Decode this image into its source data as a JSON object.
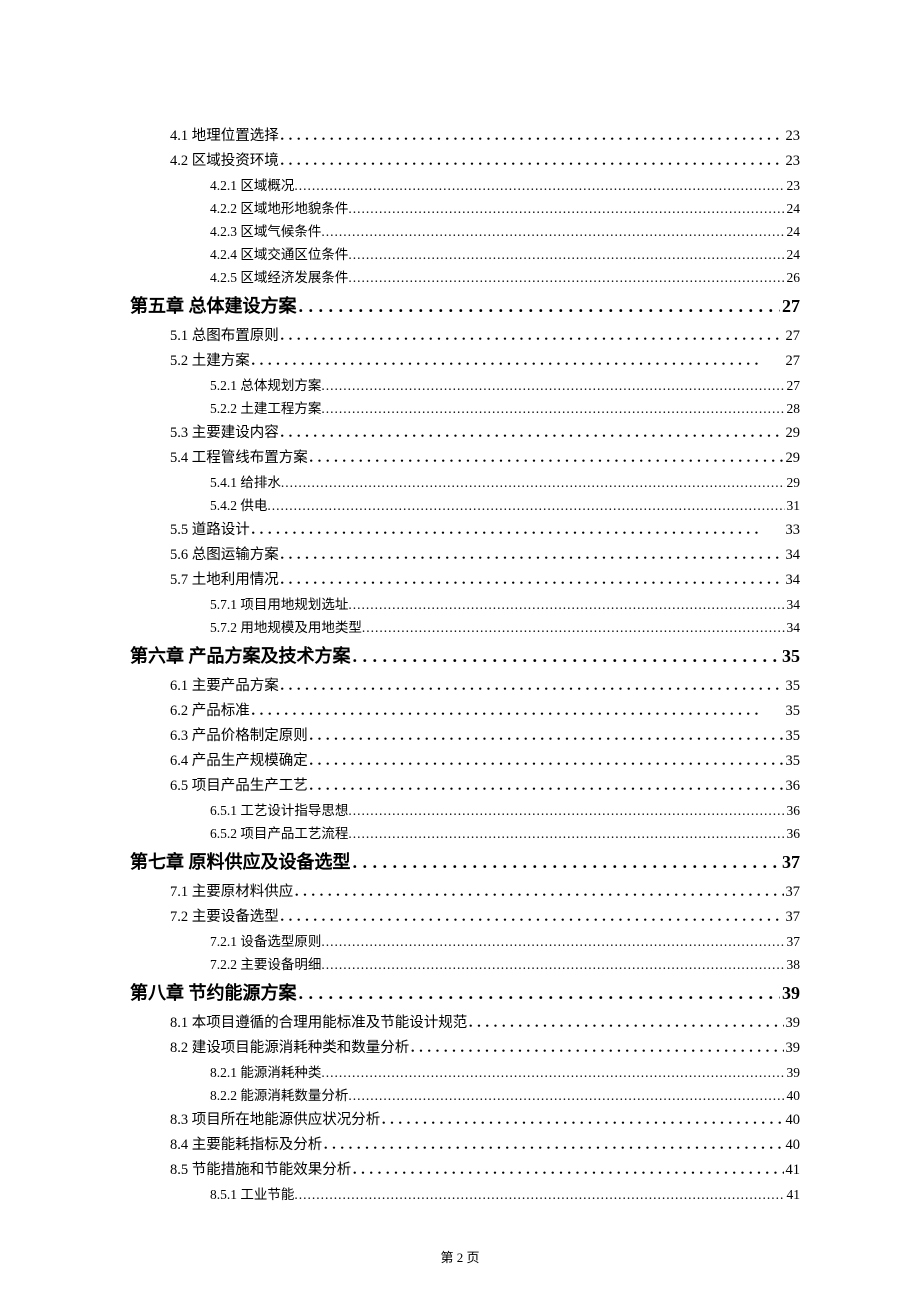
{
  "footer": "第 2 页",
  "dots_chapter_l1": "．．．．．．．．．．．．．．．．．．．．．．．．．．．．．．．．．．．．．．．．．．．．．．．．．．．．．．．．．．．．．．",
  "dots_l2": "..................................................................................................................................................................",
  "entries": [
    {
      "level": 1,
      "title": "4.1 地理位置选择",
      "page": "23"
    },
    {
      "level": 1,
      "title": "4.2 区域投资环境",
      "page": "23"
    },
    {
      "level": 2,
      "title": "4.2.1 区域概况",
      "page": "23"
    },
    {
      "level": 2,
      "title": "4.2.2 区域地形地貌条件",
      "page": "24"
    },
    {
      "level": 2,
      "title": "4.2.3 区域气候条件",
      "page": "24"
    },
    {
      "level": 2,
      "title": "4.2.4 区域交通区位条件",
      "page": "24"
    },
    {
      "level": 2,
      "title": "4.2.5 区域经济发展条件",
      "page": "26"
    },
    {
      "level": 0,
      "title": "第五章  总体建设方案",
      "page": "27"
    },
    {
      "level": 1,
      "title": "5.1 总图布置原则",
      "page": "27"
    },
    {
      "level": 1,
      "title": "5.2 土建方案",
      "page": "27"
    },
    {
      "level": 2,
      "title": "5.2.1 总体规划方案",
      "page": "27"
    },
    {
      "level": 2,
      "title": "5.2.2 土建工程方案",
      "page": "28"
    },
    {
      "level": 1,
      "title": "5.3 主要建设内容",
      "page": "29"
    },
    {
      "level": 1,
      "title": "5.4 工程管线布置方案",
      "page": "29"
    },
    {
      "level": 2,
      "title": "5.4.1 给排水",
      "page": "29"
    },
    {
      "level": 2,
      "title": "5.4.2 供电",
      "page": "31"
    },
    {
      "level": 1,
      "title": "5.5 道路设计",
      "page": "33"
    },
    {
      "level": 1,
      "title": "5.6 总图运输方案",
      "page": "34"
    },
    {
      "level": 1,
      "title": "5.7 土地利用情况",
      "page": "34"
    },
    {
      "level": 2,
      "title": "5.7.1 项目用地规划选址",
      "page": "34"
    },
    {
      "level": 2,
      "title": "5.7.2 用地规模及用地类型",
      "page": "34"
    },
    {
      "level": 0,
      "title": "第六章  产品方案及技术方案",
      "page": "35"
    },
    {
      "level": 1,
      "title": "6.1 主要产品方案",
      "page": "35"
    },
    {
      "level": 1,
      "title": "6.2 产品标准",
      "page": "35"
    },
    {
      "level": 1,
      "title": "6.3 产品价格制定原则",
      "page": "35"
    },
    {
      "level": 1,
      "title": "6.4 产品生产规模确定",
      "page": "35"
    },
    {
      "level": 1,
      "title": "6.5 项目产品生产工艺",
      "page": "36"
    },
    {
      "level": 2,
      "title": "6.5.1 工艺设计指导思想",
      "page": "36"
    },
    {
      "level": 2,
      "title": "6.5.2 项目产品工艺流程",
      "page": "36"
    },
    {
      "level": 0,
      "title": "第七章  原料供应及设备选型",
      "page": "37"
    },
    {
      "level": 1,
      "title": "7.1 主要原材料供应",
      "page": "37"
    },
    {
      "level": 1,
      "title": "7.2 主要设备选型",
      "page": "37"
    },
    {
      "level": 2,
      "title": "7.2.1 设备选型原则",
      "page": "37"
    },
    {
      "level": 2,
      "title": "7.2.2 主要设备明细",
      "page": "38"
    },
    {
      "level": 0,
      "title": "第八章  节约能源方案",
      "page": "39"
    },
    {
      "level": 1,
      "title": "8.1 本项目遵循的合理用能标准及节能设计规范",
      "page": "39"
    },
    {
      "level": 1,
      "title": "8.2 建设项目能源消耗种类和数量分析",
      "page": "39"
    },
    {
      "level": 2,
      "title": "8.2.1 能源消耗种类",
      "page": "39"
    },
    {
      "level": 2,
      "title": "8.2.2 能源消耗数量分析",
      "page": "40"
    },
    {
      "level": 1,
      "title": "8.3 项目所在地能源供应状况分析",
      "page": "40"
    },
    {
      "level": 1,
      "title": "8.4 主要能耗指标及分析",
      "page": "40"
    },
    {
      "level": 1,
      "title": "8.5 节能措施和节能效果分析",
      "page": "41"
    },
    {
      "level": 2,
      "title": "8.5.1 工业节能",
      "page": "41"
    }
  ]
}
